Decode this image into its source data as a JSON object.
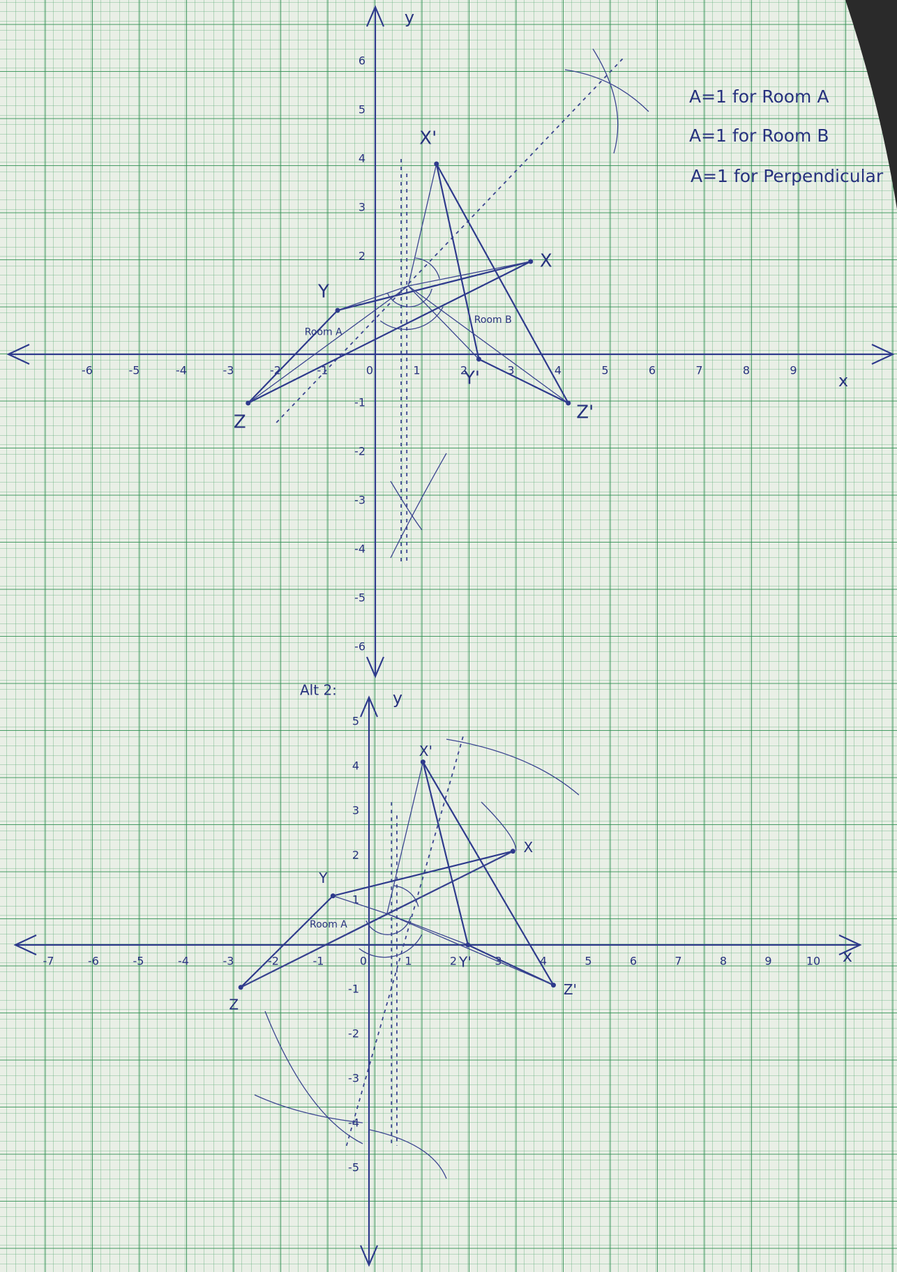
{
  "notes": [
    "A=1 for Room A",
    "A=1 for Room B",
    "A=1 for Perpendicular"
  ],
  "graphs": [
    {
      "x_axis_label": "x",
      "y_axis_label": "y",
      "x_ticks": [
        -6,
        -5,
        -4,
        -3,
        -2,
        -1,
        0,
        1,
        2,
        3,
        4,
        5,
        6,
        7,
        8,
        9
      ],
      "y_ticks": [
        6,
        5,
        4,
        3,
        2,
        -1,
        -2,
        -3,
        -4,
        -5,
        -6
      ],
      "points": [
        "X'",
        "X",
        "Y",
        "Y'",
        "Z",
        "Z'"
      ],
      "regions": [
        "Room A",
        "Room B"
      ]
    },
    {
      "title": "Alt 2:",
      "x_axis_label": "x",
      "y_axis_label": "y",
      "x_ticks": [
        -7,
        -6,
        -5,
        -4,
        -3,
        -2,
        -1,
        0,
        1,
        2,
        3,
        4,
        5,
        6,
        7,
        8,
        9,
        10
      ],
      "y_ticks": [
        5,
        4,
        3,
        2,
        1,
        -1,
        -2,
        -3,
        -4,
        -5
      ],
      "points": [
        "X'",
        "X",
        "Y",
        "Y'",
        "Z",
        "Z'"
      ],
      "regions": [
        "Room A"
      ]
    }
  ]
}
